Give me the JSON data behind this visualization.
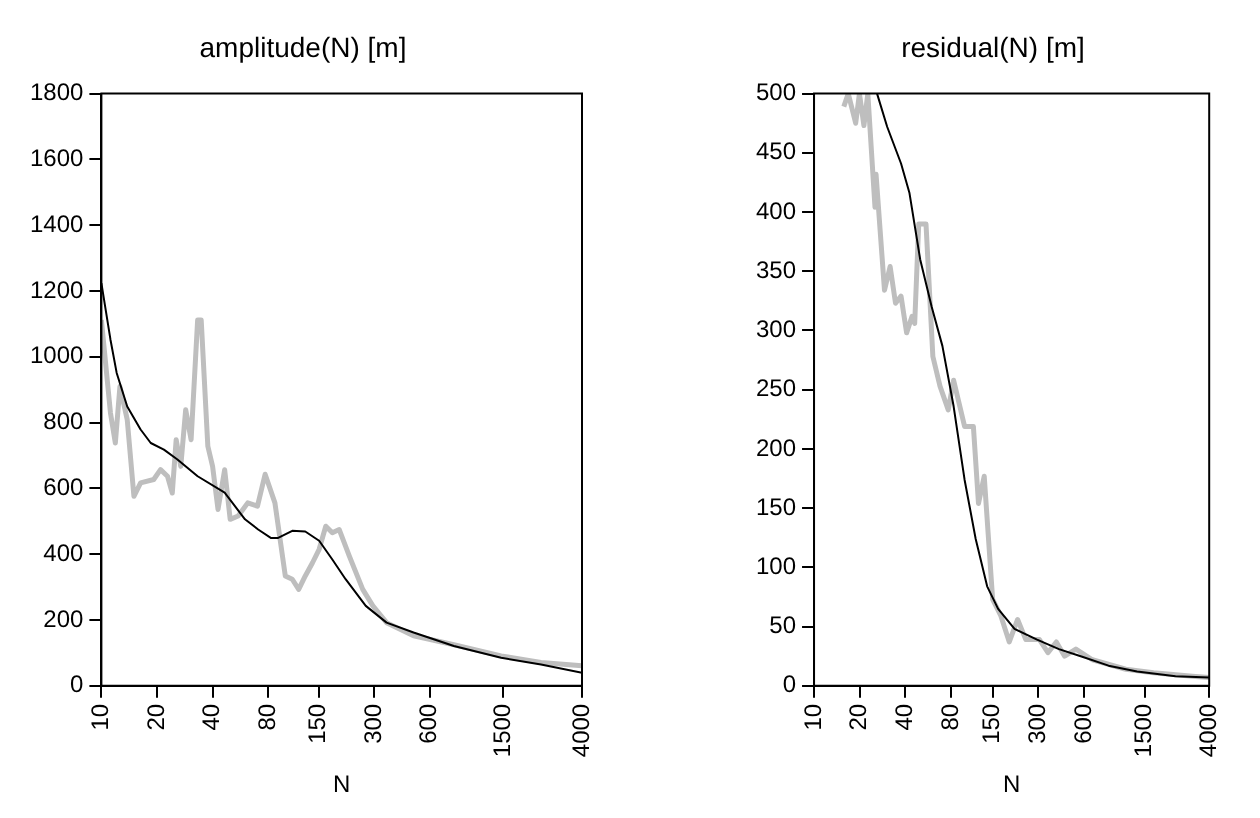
{
  "chart_data": [
    {
      "type": "line",
      "title": "amplitude(N) [m]",
      "xlabel": "N",
      "log": "x",
      "xlim": [
        10,
        4000
      ],
      "xticks": [
        10,
        20,
        40,
        80,
        150,
        300,
        600,
        1500,
        4000
      ],
      "ylim": [
        0,
        1800
      ],
      "yticks": [
        0,
        200,
        400,
        600,
        800,
        1000,
        1200,
        1400,
        1600,
        1800
      ],
      "grid": false,
      "legend": false,
      "marker": "none",
      "line_style": "solid",
      "series": [
        {
          "color": "#bebebe",
          "x": [
            10,
            11.2,
            11.9,
            12.6,
            13.8,
            15,
            16.3,
            19.2,
            20.9,
            22.8,
            24.2,
            25.4,
            26.9,
            28.6,
            30.6,
            33.2,
            34.7,
            37.7,
            40,
            42.8,
            46.5,
            49.8,
            55,
            62,
            70,
            77,
            87,
            99,
            108,
            117,
            127,
            139,
            151,
            164,
            178,
            194,
            220,
            260,
            295,
            350,
            490,
            810,
            1460,
            2400,
            4000
          ],
          "values": [
            1112,
            829,
            738,
            910,
            809,
            576,
            617,
            627,
            657,
            637,
            586,
            748,
            667,
            839,
            748,
            1112,
            1112,
            728,
            667,
            536,
            657,
            506,
            516,
            556,
            546,
            643,
            556,
            334,
            324,
            293,
            334,
            374,
            415,
            485,
            465,
            475,
            394,
            293,
            243,
            192,
            152,
            125,
            91,
            71,
            61
          ]
        },
        {
          "color": "#000000",
          "x": [
            10,
            11.2,
            12.1,
            13.8,
            16.3,
            18.5,
            21.8,
            25.8,
            33.2,
            46.5,
            59.9,
            70.6,
            83,
            90,
            108,
            127,
            151,
            178,
            210,
            270,
            350,
            490,
            810,
            1460,
            2400,
            4000
          ],
          "values": [
            1224,
            1052,
            951,
            849,
            779,
            738,
            718,
            688,
            637,
            587,
            506,
            475,
            449,
            449,
            471,
            469,
            441,
            384,
            324,
            243,
            192,
            162,
            121,
            85,
            65,
            40
          ]
        }
      ]
    },
    {
      "type": "line",
      "title": "residual(N) [m]",
      "xlabel": "N",
      "log": "x",
      "xlim": [
        10,
        4000
      ],
      "xticks": [
        10,
        20,
        40,
        80,
        150,
        300,
        600,
        1500,
        4000
      ],
      "ylim": [
        0,
        500
      ],
      "yticks": [
        0,
        50,
        100,
        150,
        200,
        250,
        300,
        350,
        400,
        450,
        500
      ],
      "grid": false,
      "legend": false,
      "marker": "none",
      "line_style": "solid",
      "series": [
        {
          "color": "#bebebe",
          "x": [
            15.7,
            16.8,
            18.8,
            19.9,
            21.3,
            22.6,
            25.2,
            25.6,
            29.1,
            31.7,
            34.4,
            37.4,
            40.7,
            44.2,
            46,
            48.9,
            54.6,
            60.6,
            67.5,
            76.5,
            83,
            98,
            112,
            121,
            132,
            150,
            170,
            193,
            219,
            248,
            305,
            347,
            394,
            447,
            530,
            680,
            1130,
            1720,
            3100,
            4000
          ],
          "values": [
            489,
            500,
            475,
            500,
            473,
            500,
            404,
            432,
            334,
            354,
            323,
            329,
            298,
            312,
            306,
            390,
            390,
            278,
            253,
            233,
            258,
            219,
            219,
            154,
            177,
            73,
            59,
            37,
            56,
            39,
            39,
            28,
            37,
            25,
            31,
            22,
            14,
            11,
            8,
            7
          ]
        },
        {
          "color": "#000000",
          "x": [
            26,
            30.3,
            37.4,
            42.5,
            50,
            59.5,
            70,
            83,
            98,
            116,
            138,
            163,
            209,
            294,
            410,
            570,
            870,
            1340,
            2400,
            4000
          ],
          "values": [
            500,
            472,
            441,
            416,
            360,
            320,
            287,
            236,
            174,
            124,
            84,
            65,
            48,
            39,
            31,
            25,
            17,
            12,
            8,
            7
          ]
        }
      ]
    }
  ]
}
